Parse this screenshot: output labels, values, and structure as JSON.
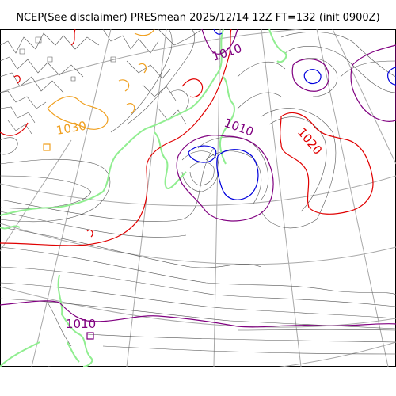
{
  "title": "NCEP(See disclaimer) PRESmean 2025/12/14 12Z FT=132 (init 0900Z)",
  "labels": {
    "l1010_north": "1010",
    "l1010_center": "1010",
    "l1020_east": "1020",
    "l1030_west": "1030",
    "l1010_south": "1010"
  },
  "colors": {
    "grid": "#a8a8a8",
    "isobar": "#555555",
    "contour_1010": "#800080",
    "contour_1020": "#e00000",
    "contour_1030": "#f0a020",
    "contour_low": "#0000dd",
    "coastline": "#90ee90"
  }
}
